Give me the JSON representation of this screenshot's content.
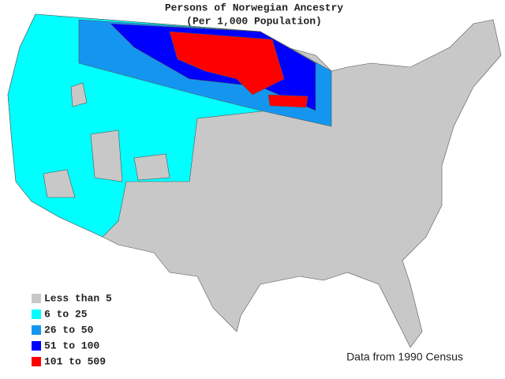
{
  "map": {
    "title": "Persons of Norwegian Ancestry",
    "subtitle": "(Per 1,000 Population)",
    "legend": [
      {
        "label": "Less than 5",
        "color": "#c8c8c8"
      },
      {
        "label": "6 to 25",
        "color": "#00ffff"
      },
      {
        "label": "26 to 50",
        "color": "#1496f0"
      },
      {
        "label": "51 to 100",
        "color": "#0000ff"
      },
      {
        "label": "101 to 509",
        "color": "#ff0000"
      }
    ],
    "source": "Data from 1990 Census"
  }
}
